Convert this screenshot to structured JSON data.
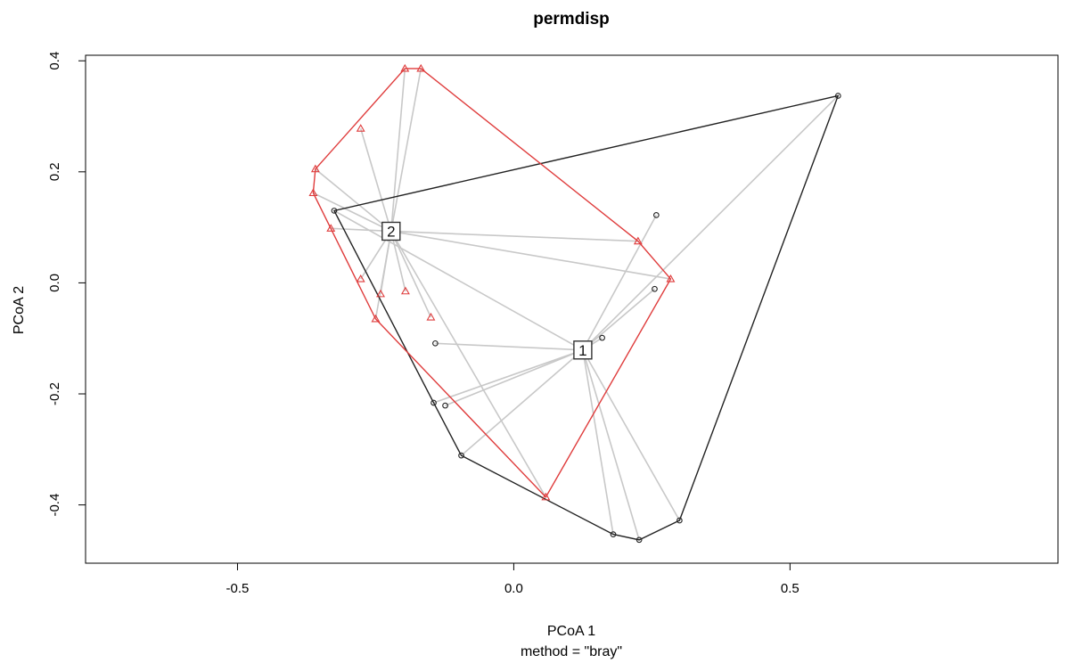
{
  "chart_data": {
    "type": "scatter",
    "title": "permdisp",
    "xlabel": "PCoA 1",
    "ylabel": "PCoA 2",
    "subtitle": "method = \"bray\"",
    "xlim": [
      -0.775,
      0.985
    ],
    "ylim": [
      -0.505,
      0.41
    ],
    "xticks": [
      -0.5,
      0.0,
      0.5
    ],
    "yticks": [
      -0.4,
      -0.2,
      0.0,
      0.2,
      0.4
    ],
    "xtick_labels": [
      "-0.5",
      "0.0",
      "0.5"
    ],
    "ytick_labels": [
      "-0.4",
      "-0.2",
      "0.0",
      "0.2",
      "0.4"
    ],
    "grid": false,
    "series": [
      {
        "group": "1",
        "marker": "circle",
        "color": "#222222",
        "centroid": [
          0.125,
          -0.121
        ],
        "points": [
          [
            0.587,
            0.337
          ],
          [
            -0.325,
            0.13
          ],
          [
            0.258,
            0.122
          ],
          [
            0.255,
            -0.011
          ],
          [
            0.16,
            -0.099
          ],
          [
            -0.142,
            -0.109
          ],
          [
            -0.124,
            -0.221
          ],
          [
            -0.145,
            -0.216
          ],
          [
            -0.095,
            -0.311
          ],
          [
            0.3,
            -0.428
          ],
          [
            0.18,
            -0.453
          ],
          [
            0.227,
            -0.463
          ]
        ],
        "hull": [
          [
            0.587,
            0.337
          ],
          [
            -0.325,
            0.13
          ],
          [
            -0.145,
            -0.216
          ],
          [
            -0.095,
            -0.311
          ],
          [
            0.18,
            -0.453
          ],
          [
            0.227,
            -0.463
          ],
          [
            0.3,
            -0.428
          ]
        ]
      },
      {
        "group": "2",
        "marker": "triangle",
        "color": "#df3c3c",
        "centroid": [
          -0.222,
          0.093
        ],
        "points": [
          [
            -0.197,
            0.386
          ],
          [
            -0.168,
            0.386
          ],
          [
            -0.277,
            0.278
          ],
          [
            -0.359,
            0.205
          ],
          [
            -0.363,
            0.162
          ],
          [
            -0.331,
            0.098
          ],
          [
            -0.277,
            0.007
          ],
          [
            -0.241,
            -0.02
          ],
          [
            -0.196,
            -0.015
          ],
          [
            -0.15,
            -0.062
          ],
          [
            -0.25,
            -0.065
          ],
          [
            0.225,
            0.075
          ],
          [
            0.284,
            0.007
          ],
          [
            0.058,
            -0.386
          ]
        ],
        "hull": [
          [
            -0.197,
            0.386
          ],
          [
            -0.168,
            0.386
          ],
          [
            0.225,
            0.075
          ],
          [
            0.284,
            0.007
          ],
          [
            0.058,
            -0.386
          ],
          [
            -0.25,
            -0.065
          ],
          [
            -0.363,
            0.162
          ],
          [
            -0.359,
            0.205
          ]
        ]
      }
    ]
  },
  "colors": {
    "spoke": "#c8c8c8",
    "axis": "#000000",
    "centroid_box": "#333333"
  }
}
